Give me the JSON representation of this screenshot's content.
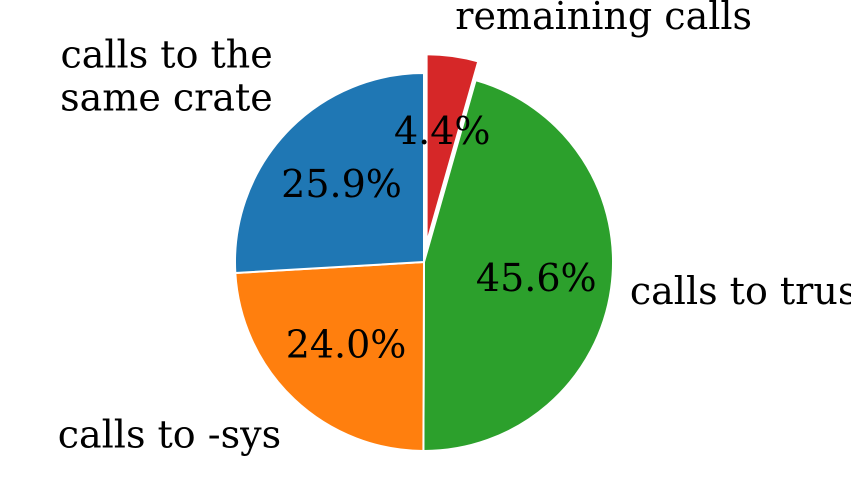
{
  "chart_data": {
    "type": "pie",
    "title": "",
    "start_angle_deg": 90,
    "direction": "clockwise",
    "slices": [
      {
        "label": "remaining calls",
        "label_lines": [
          "remaining calls"
        ],
        "value": 4.4,
        "pct_text": "4.4%",
        "color": "#d62728",
        "explode": true
      },
      {
        "label": "calls to trusted",
        "label_lines": [
          "calls to trusted"
        ],
        "value": 45.6,
        "pct_text": "45.6%",
        "color": "#2ca02c",
        "explode": false
      },
      {
        "label": "calls to -sys",
        "label_lines": [
          "calls to -sys"
        ],
        "value": 24.0,
        "pct_text": "24.0%",
        "color": "#ff7f0e",
        "explode": false
      },
      {
        "label": "calls to the same crate",
        "label_lines": [
          "calls to the",
          "same crate"
        ],
        "value": 25.9,
        "pct_text": "25.9%",
        "color": "#1f77b4",
        "explode": false
      }
    ]
  }
}
